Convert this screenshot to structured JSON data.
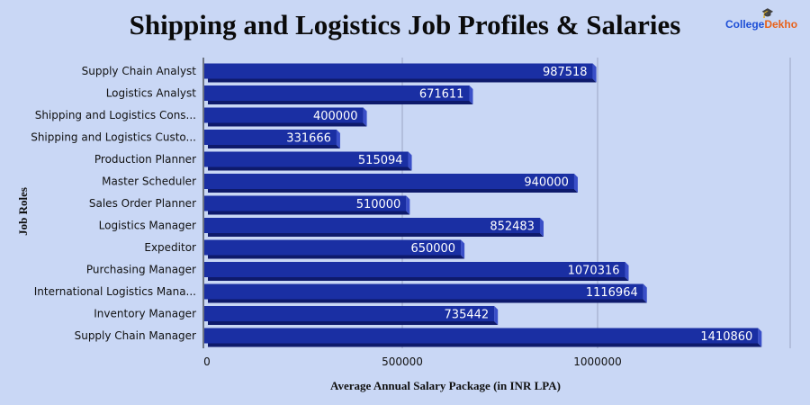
{
  "title": "Shipping and Logistics Job Profiles & Salaries",
  "logo": {
    "part1": "College",
    "part2": "Dekho",
    "icon": "graduation-cap-icon"
  },
  "colors": {
    "background": "#c9d7f5",
    "bar": "#1a2fa3",
    "bar_dark": "#0e1a6b",
    "bar_light": "#3a4fc8",
    "grid": "#9aa6c4"
  },
  "chart_data": {
    "type": "bar",
    "orientation": "horizontal",
    "title": "Shipping and Logistics Job Profiles & Salaries",
    "xlabel": "Average Annual Salary Package (in INR LPA)",
    "ylabel": "Job Roles",
    "xlim": [
      0,
      1500000
    ],
    "xticks": [
      0,
      500000,
      1000000
    ],
    "xtick_labels": [
      "0",
      "500000",
      "1000000"
    ],
    "grid": "vertical",
    "categories": [
      "Supply Chain Analyst",
      "Logistics Analyst",
      "Shipping and Logistics Cons...",
      "Shipping and Logistics Custo...",
      "Production Planner",
      "Master Scheduler",
      "Sales Order Planner",
      "Logistics Manager",
      "Expeditor",
      "Purchasing Manager",
      "International Logistics Mana...",
      "Inventory Manager",
      "Supply Chain Manager"
    ],
    "values": [
      987518,
      671611,
      400000,
      331666,
      515094,
      940000,
      510000,
      852483,
      650000,
      1070316,
      1116964,
      735442,
      1410860
    ],
    "value_labels": [
      "987518",
      "671611",
      "400000",
      "331666",
      "515094",
      "940000",
      "510000",
      "852483",
      "650000",
      "1070316",
      "1116964",
      "735442",
      "1410860"
    ]
  }
}
